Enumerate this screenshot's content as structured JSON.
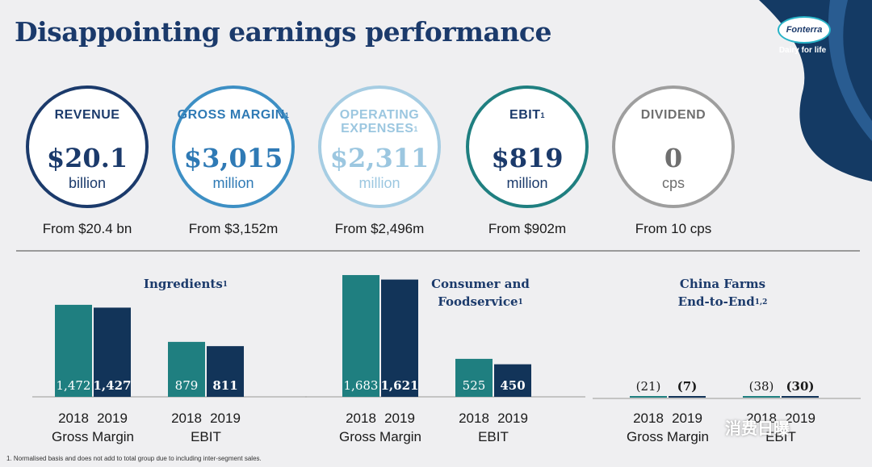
{
  "title": "Disappointing earnings performance",
  "logo": {
    "brand": "Fonterra",
    "tagline": "Dairy for life"
  },
  "colors": {
    "navy": "#1b3a6b",
    "teal": "#1f7f80",
    "dark_navy": "#123459",
    "light_blue": "#a6cde3",
    "grey": "#9e9e9e"
  },
  "kpis": [
    {
      "label": "REVENUE",
      "sup": "",
      "value": "$20.1",
      "unit": "billion",
      "from": "From $20.4 bn",
      "color": "#1b3a6b",
      "text_color": "#1b3a6b"
    },
    {
      "label": "GROSS MARGIN",
      "sup": "1",
      "value": "$3,015",
      "unit": "million",
      "from": "From $3,152m",
      "color": "#3d8fc4",
      "text_color": "#2f7ab5"
    },
    {
      "label": "OPERATING EXPENSES",
      "sup": "1",
      "value": "$2,311",
      "unit": "million",
      "from": "From $2,496m",
      "color": "#a6cde3",
      "text_color": "#9cc7e0"
    },
    {
      "label": "EBIT",
      "sup": "1",
      "value": "$819",
      "unit": "million",
      "from": "From $902m",
      "color": "#1f7f80",
      "text_color": "#1b3a6b"
    },
    {
      "label": "DIVIDEND",
      "sup": "",
      "value": "0",
      "unit": "cps",
      "from": "From 10 cps",
      "color": "#9e9e9e",
      "text_color": "#6f6f6f"
    }
  ],
  "chart_data": [
    {
      "type": "bar",
      "title": "Ingredients",
      "title_sup": "1",
      "groups": [
        "Gross Margin",
        "EBIT"
      ],
      "years": [
        "2018",
        "2019"
      ],
      "series": [
        {
          "name": "2018",
          "values": [
            1472,
            879
          ]
        },
        {
          "name": "2019",
          "values": [
            1427,
            811
          ]
        }
      ],
      "labels": [
        [
          "1,472",
          "1,427"
        ],
        [
          "879",
          "811"
        ]
      ]
    },
    {
      "type": "bar",
      "title": "Consumer and Foodservice",
      "title_sup": "1",
      "groups": [
        "Gross Margin",
        "EBIT"
      ],
      "years": [
        "2018",
        "2019"
      ],
      "series": [
        {
          "name": "2018",
          "values": [
            1683,
            525
          ]
        },
        {
          "name": "2019",
          "values": [
            1621,
            450
          ]
        }
      ],
      "labels": [
        [
          "1,683",
          "1,621"
        ],
        [
          "525",
          "450"
        ]
      ]
    },
    {
      "type": "bar",
      "title": "China Farms End-to-End",
      "title_sup": "1,2",
      "groups": [
        "Gross Margin",
        "EBIT"
      ],
      "years": [
        "2018",
        "2019"
      ],
      "series": [
        {
          "name": "2018",
          "values": [
            -21,
            -38
          ]
        },
        {
          "name": "2019",
          "values": [
            -7,
            -30
          ]
        }
      ],
      "labels": [
        [
          "(21)",
          "(7)"
        ],
        [
          "(38)",
          "(30)"
        ]
      ]
    }
  ],
  "footnote": "1. Normalised basis and does not add to total group due to including inter-segment sales.",
  "watermark": "消费日曝"
}
